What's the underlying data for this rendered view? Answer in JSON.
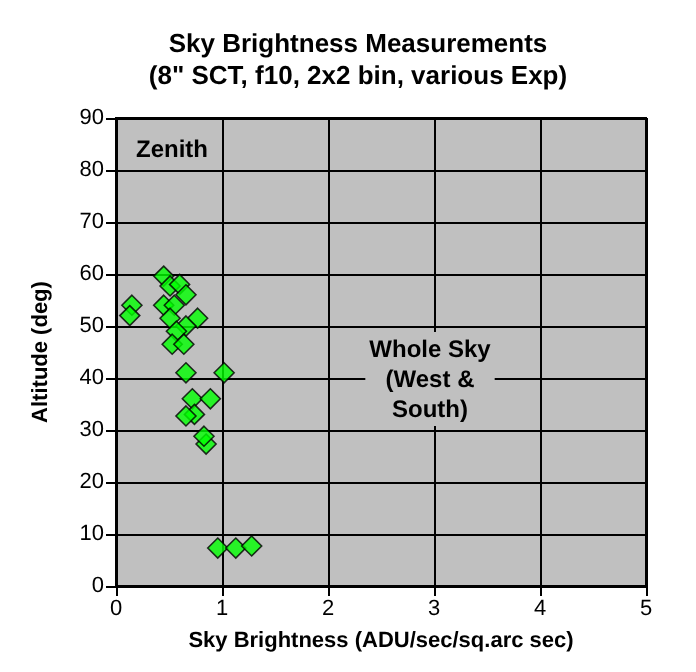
{
  "chart_data": {
    "type": "scatter",
    "title": "Sky Brightness Measurements",
    "subtitle": "(8\" SCT, f10, 2x2 bin, various Exp)",
    "xlabel": "Sky Brightness (ADU/sec/sq.arc sec)",
    "ylabel": "Altitude (deg)",
    "annotations": [
      "Zenith",
      "Whole Sky\n(West &\nSouth)"
    ],
    "x": [
      0.15,
      0.13,
      0.45,
      0.51,
      0.6,
      0.66,
      0.45,
      0.55,
      0.51,
      0.77,
      0.66,
      0.57,
      0.53,
      0.64,
      0.66,
      1.02,
      0.72,
      0.89,
      0.74,
      0.66,
      0.85,
      0.83,
      0.96,
      1.13,
      1.28
    ],
    "series": [
      {
        "color": "#00ff00",
        "values": [
          54,
          52,
          59.6,
          57.7,
          58,
          56,
          54,
          54,
          51.5,
          51.5,
          50,
          49,
          46.5,
          46.5,
          41,
          41,
          36,
          36,
          33,
          32.7,
          27.3,
          28.8,
          7.3,
          7.3,
          7.7
        ]
      }
    ],
    "xlim": [
      0,
      5
    ],
    "xticks": [
      0,
      1,
      2,
      3,
      4,
      5
    ],
    "ylim": [
      0,
      90
    ],
    "yticks": [
      0,
      10,
      20,
      30,
      40,
      50,
      60,
      70,
      80,
      90
    ],
    "grid": true,
    "marker": "diamond"
  }
}
